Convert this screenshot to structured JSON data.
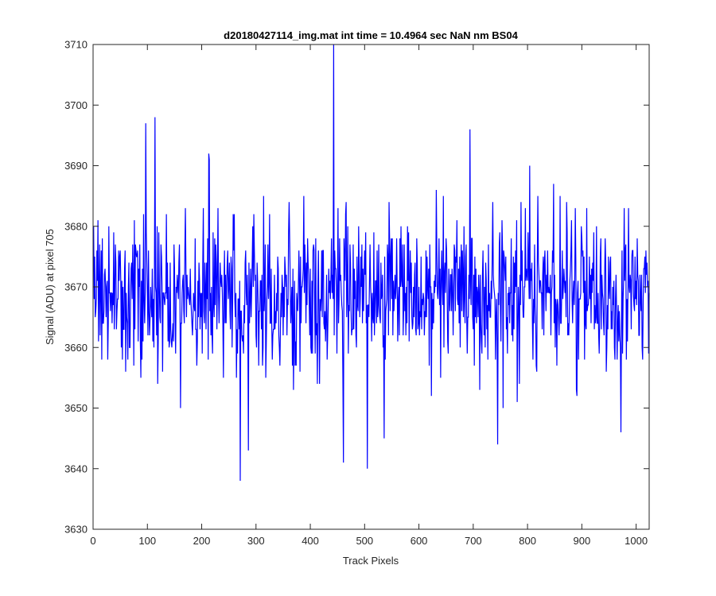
{
  "chart_data": {
    "type": "line",
    "title": "d20180427114_img.mat int time = 10.4964 sec  NaN nm BS04",
    "xlabel": "Track Pixels",
    "ylabel": "Signal (ADU) at pixel 705",
    "xlim": [
      0,
      1024
    ],
    "ylim": [
      3630,
      3710
    ],
    "xticks": [
      0,
      100,
      200,
      300,
      400,
      500,
      600,
      700,
      800,
      900,
      1000
    ],
    "yticks": [
      3630,
      3640,
      3650,
      3660,
      3670,
      3680,
      3690,
      3700,
      3710
    ],
    "grid": false,
    "legend": "none",
    "series": [
      {
        "color": "#0000ff",
        "x_start": 1,
        "x_step": 1,
        "n_points": 1024,
        "mean": 3669,
        "noise_std": 6.5,
        "annotated_extremes": [
          {
            "x": 443,
            "y": 3710
          },
          {
            "x": 114,
            "y": 3698
          },
          {
            "x": 97,
            "y": 3697
          },
          {
            "x": 694,
            "y": 3696
          },
          {
            "x": 271,
            "y": 3638
          },
          {
            "x": 505,
            "y": 3640
          },
          {
            "x": 461,
            "y": 3641
          },
          {
            "x": 286,
            "y": 3643
          },
          {
            "x": 745,
            "y": 3644
          },
          {
            "x": 536,
            "y": 3645
          },
          {
            "x": 972,
            "y": 3646
          }
        ]
      }
    ]
  }
}
